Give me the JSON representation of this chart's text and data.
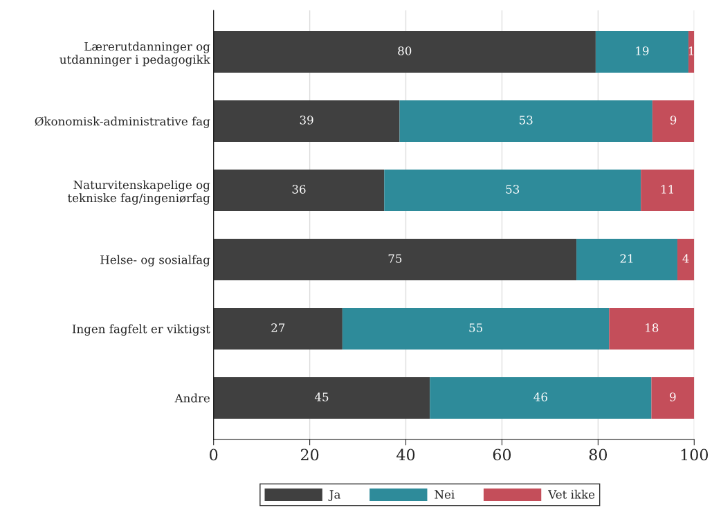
{
  "chart_data": {
    "type": "bar",
    "orientation": "horizontal",
    "stacked": true,
    "categories": [
      "Lærerutdanninger og\nutdanninger i pedagogikk",
      "Økonomisk-administrative fag",
      "Naturvitenskapelige og\ntekniske fag/ingeniørfag",
      "Helse- og sosialfag",
      "Ingen fagfelt er viktigst",
      "Andre"
    ],
    "series": [
      {
        "name": "Ja",
        "color": "#404040",
        "values": [
          79.5,
          38.7,
          35.5,
          75.5,
          26.8,
          45.0
        ],
        "value_labels": [
          "80",
          "39",
          "36",
          "75",
          "27",
          "45"
        ]
      },
      {
        "name": "Nei",
        "color": "#2e8b9a",
        "values": [
          19.3,
          52.6,
          53.4,
          21.0,
          55.5,
          46.1
        ],
        "value_labels": [
          "19",
          "53",
          "53",
          "21",
          "55",
          "46"
        ]
      },
      {
        "name": "Vet ikke",
        "color": "#c44e5a",
        "values": [
          1.2,
          8.7,
          11.1,
          3.5,
          17.7,
          8.9
        ],
        "value_labels": [
          "1",
          "9",
          "11",
          "4",
          "18",
          "9"
        ]
      }
    ],
    "xlim": [
      0,
      100
    ],
    "xticks": [
      0,
      20,
      40,
      60,
      80,
      100
    ],
    "grid": "x",
    "legend": "bottom"
  }
}
